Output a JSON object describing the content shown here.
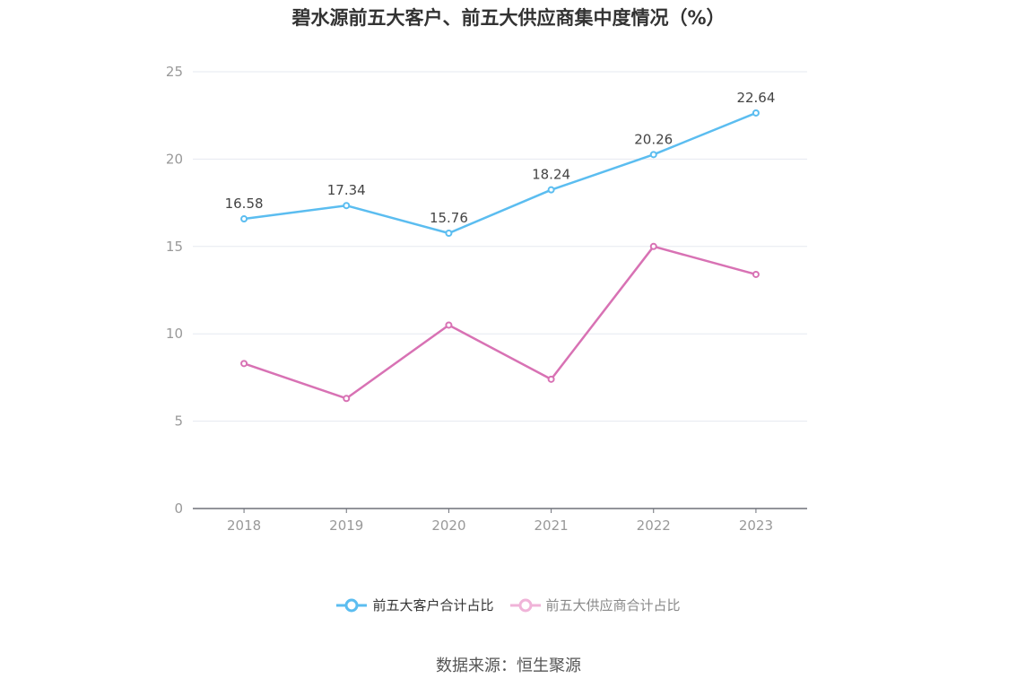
{
  "title": "碧水源前五大客户、前五大供应商集中度情况（%）",
  "source": "数据来源：恒生聚源",
  "chart_data": {
    "type": "line",
    "categories": [
      "2018",
      "2019",
      "2020",
      "2021",
      "2022",
      "2023"
    ],
    "series": [
      {
        "name": "前五大客户合计占比",
        "values": [
          16.58,
          17.34,
          15.76,
          18.24,
          20.26,
          22.64
        ],
        "color": "#5bbdf0",
        "labels": [
          "16.58",
          "17.34",
          "15.76",
          "18.24",
          "20.26",
          "22.64"
        ]
      },
      {
        "name": "前五大供应商合计占比",
        "values": [
          8.3,
          6.3,
          10.5,
          7.4,
          15.0,
          13.4
        ],
        "color": "#d872b4",
        "labels": []
      }
    ],
    "ylim": [
      0,
      25
    ],
    "yticks": [
      "0",
      "5",
      "10",
      "15",
      "20",
      "25"
    ],
    "grid": true,
    "legend": "bottom-center"
  }
}
